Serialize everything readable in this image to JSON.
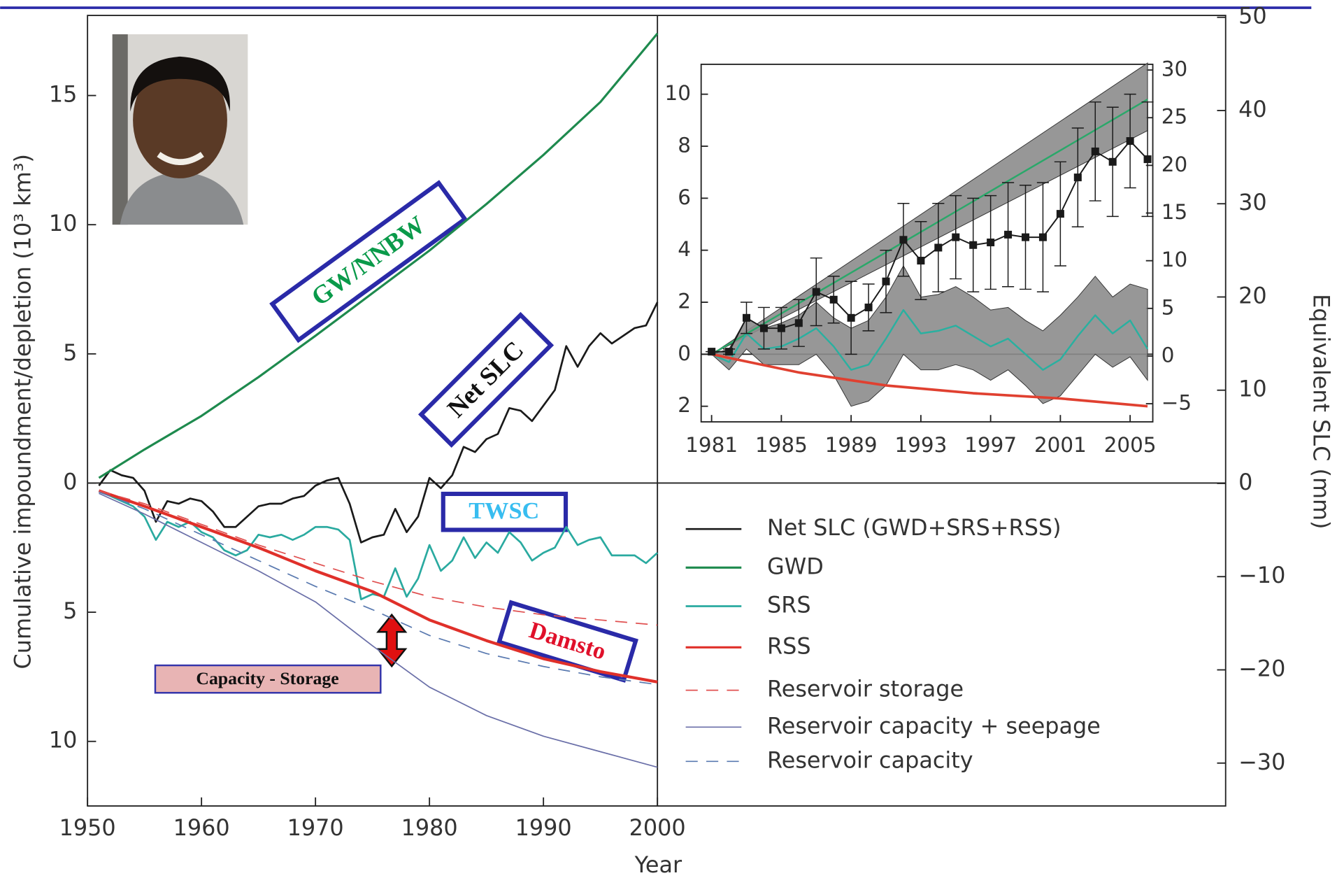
{
  "chart_data": [
    {
      "type": "line",
      "xlabel": "Year",
      "ylabel": "Cumulative impoundment/depletion (10³ km³)",
      "y2label": "Equivalent SLC (mm)",
      "xlim": [
        1950,
        2000
      ],
      "xticks": [
        1950,
        1960,
        1970,
        1980,
        1990,
        2000
      ],
      "ylim": [
        -12.5,
        18.1
      ],
      "yticks": [
        15,
        10,
        5,
        0,
        {
          "value": -5,
          "label": "5"
        },
        {
          "value": -10,
          "label": "10"
        }
      ],
      "y2lim": [
        -34.6,
        50.2
      ],
      "y2ticks": [
        50,
        40,
        30,
        20,
        10,
        0,
        {
          "value": -10,
          "label": "−10"
        },
        {
          "value": -20,
          "label": "−20"
        },
        {
          "value": -30,
          "label": "−30"
        }
      ],
      "series": [
        {
          "name": "Net SLC (GWD+SRS+RSS)",
          "color": "#1a1a1a",
          "linewidth": 2.2,
          "x": [
            1951,
            1952,
            1953,
            1954,
            1955,
            1956,
            1957,
            1958,
            1959,
            1960,
            1961,
            1962,
            1963,
            1964,
            1965,
            1966,
            1967,
            1968,
            1969,
            1970,
            1971,
            1972,
            1973,
            1974,
            1975,
            1976,
            1977,
            1978,
            1979,
            1980,
            1981,
            1982,
            1983,
            1984,
            1985,
            1986,
            1987,
            1988,
            1989,
            1990,
            1991,
            1992,
            1993,
            1994,
            1995,
            1996,
            1997,
            1998,
            1999,
            2000
          ],
          "values": [
            -0.1,
            0.5,
            0.3,
            0.2,
            -0.3,
            -1.5,
            -0.7,
            -0.8,
            -0.6,
            -0.7,
            -1.1,
            -1.7,
            -1.7,
            -1.3,
            -0.9,
            -0.8,
            -0.8,
            -0.6,
            -0.5,
            -0.1,
            0.1,
            0.2,
            -0.8,
            -2.3,
            -2.1,
            -2.0,
            -1.0,
            -1.9,
            -1.3,
            0.2,
            -0.2,
            0.3,
            1.4,
            1.2,
            1.7,
            1.9,
            2.9,
            2.8,
            2.4,
            3.0,
            3.6,
            5.3,
            4.5,
            5.3,
            5.8,
            5.4,
            5.7,
            6.0,
            6.1,
            7.0
          ]
        },
        {
          "name": "GWD",
          "color": "#1e8a4e",
          "linewidth": 2.6,
          "x": [
            1951,
            1955,
            1960,
            1965,
            1970,
            1975,
            1980,
            1985,
            1990,
            1995,
            2000
          ],
          "values": [
            0.2,
            1.3,
            2.6,
            4.1,
            5.7,
            7.35,
            9.0,
            10.8,
            12.7,
            14.75,
            17.4
          ]
        },
        {
          "name": "SRS",
          "color": "#2aaaa0",
          "linewidth": 2.2,
          "x": [
            1951,
            1952,
            1953,
            1954,
            1955,
            1956,
            1957,
            1958,
            1959,
            1960,
            1961,
            1962,
            1963,
            1964,
            1965,
            1966,
            1967,
            1968,
            1969,
            1970,
            1971,
            1972,
            1973,
            1974,
            1975,
            1976,
            1977,
            1978,
            1979,
            1980,
            1981,
            1982,
            1983,
            1984,
            1985,
            1986,
            1987,
            1988,
            1989,
            1990,
            1991,
            1992,
            1993,
            1994,
            1995,
            1996,
            1997,
            1998,
            1999,
            2000
          ],
          "values": [
            -0.3,
            -0.5,
            -0.7,
            -0.9,
            -1.3,
            -2.2,
            -1.5,
            -1.7,
            -1.5,
            -1.9,
            -2.1,
            -2.6,
            -2.8,
            -2.6,
            -2.0,
            -2.1,
            -2.0,
            -2.2,
            -2.0,
            -1.7,
            -1.7,
            -1.8,
            -2.2,
            -4.5,
            -4.3,
            -4.4,
            -3.3,
            -4.4,
            -3.7,
            -2.4,
            -3.4,
            -3.0,
            -2.1,
            -2.9,
            -2.3,
            -2.7,
            -1.9,
            -2.3,
            -3.0,
            -2.7,
            -2.5,
            -1.7,
            -2.4,
            -2.2,
            -2.1,
            -2.8,
            -2.8,
            -2.8,
            -3.1,
            -2.7
          ]
        },
        {
          "name": "RSS",
          "color": "#e0302a",
          "linewidth": 3.4,
          "x": [
            1951,
            1955,
            1960,
            1965,
            1970,
            1975,
            1980,
            1985,
            1990,
            1995,
            2000
          ],
          "values": [
            -0.3,
            -0.9,
            -1.7,
            -2.5,
            -3.4,
            -4.2,
            -5.3,
            -6.1,
            -6.8,
            -7.3,
            -7.7
          ]
        },
        {
          "name": "Reservoir storage",
          "color": "#e05050",
          "linewidth": 1.4,
          "dash": "dashed",
          "x": [
            1951,
            1955,
            1960,
            1965,
            1970,
            1975,
            1980,
            1985,
            1990,
            1995,
            2000
          ],
          "values": [
            -0.3,
            -0.8,
            -1.6,
            -2.4,
            -3.1,
            -3.8,
            -4.4,
            -4.8,
            -5.1,
            -5.3,
            -5.5
          ]
        },
        {
          "name": "Reservoir capacity + seepage",
          "color": "#6a6fa8",
          "linewidth": 1.4,
          "x": [
            1951,
            1955,
            1960,
            1965,
            1970,
            1975,
            1980,
            1985,
            1990,
            1995,
            2000
          ],
          "values": [
            -0.4,
            -1.2,
            -2.3,
            -3.4,
            -4.6,
            -6.3,
            -7.9,
            -9.0,
            -9.8,
            -10.4,
            -11.0
          ]
        },
        {
          "name": "Reservoir capacity",
          "color": "#5a7ab0",
          "linewidth": 1.4,
          "dash": "dashed",
          "x": [
            1951,
            1955,
            1960,
            1965,
            1970,
            1975,
            1980,
            1985,
            1990,
            1995,
            2000
          ],
          "values": [
            -0.35,
            -1.0,
            -2.0,
            -3.0,
            -4.0,
            -4.9,
            -5.9,
            -6.6,
            -7.1,
            -7.5,
            -7.8
          ]
        }
      ],
      "annotations": [
        "GW/NNBW",
        "Net SLC",
        "TWSC",
        "Damsto",
        "Capacity - Storage"
      ]
    },
    {
      "type": "line",
      "xlim": [
        1980.4,
        2006.3
      ],
      "xticks": [
        1981,
        1985,
        1989,
        1993,
        1997,
        2001,
        2005
      ],
      "ylim": [
        -2.6,
        11.15
      ],
      "yticks": [
        10,
        8,
        6,
        4,
        2,
        0,
        {
          "value": -2,
          "label": "2"
        }
      ],
      "y2lim": [
        -6.9,
        30.6
      ],
      "y2ticks": [
        30,
        25,
        20,
        15,
        10,
        5,
        0,
        {
          "value": -5,
          "label": "−5"
        }
      ],
      "x": [
        1981,
        1982,
        1983,
        1984,
        1985,
        1986,
        1987,
        1988,
        1989,
        1990,
        1991,
        1992,
        1993,
        1994,
        1995,
        1996,
        1997,
        1998,
        1999,
        2000,
        2001,
        2002,
        2003,
        2004,
        2005,
        2006
      ],
      "series": [
        {
          "color": "#2aa86a",
          "linewidth": 2,
          "band_color": "#8c8c8c",
          "x": [
            1981,
            2006
          ],
          "values": [
            0,
            9.8
          ],
          "band_lower": [
            0,
            8.6
          ],
          "band_upper": [
            0,
            11.2
          ]
        },
        {
          "color": "#2ab0a0",
          "linewidth": 2,
          "band_color": "#8c8c8c",
          "values": [
            0,
            -0.3,
            0.8,
            0.2,
            0.3,
            0.6,
            1.0,
            0.3,
            -0.6,
            -0.4,
            0.6,
            1.7,
            0.8,
            0.9,
            1.1,
            0.7,
            0.3,
            0.6,
            0.0,
            -0.6,
            -0.2,
            0.7,
            1.5,
            0.8,
            1.3,
            0.2
          ],
          "band_upper": [
            0,
            0.2,
            1.4,
            1.0,
            1.2,
            1.5,
            2.0,
            1.4,
            1.0,
            1.3,
            2.2,
            3.4,
            2.2,
            2.3,
            2.6,
            2.2,
            1.7,
            1.8,
            1.3,
            0.9,
            1.5,
            2.2,
            3.0,
            2.2,
            2.7,
            2.5
          ],
          "band_lower": [
            0,
            -0.6,
            0.2,
            -0.4,
            -0.4,
            -0.4,
            0.0,
            -0.8,
            -2.0,
            -1.8,
            -1.2,
            0.0,
            -0.6,
            -0.6,
            -0.4,
            -0.6,
            -1.0,
            -0.6,
            -1.2,
            -1.9,
            -1.6,
            -0.8,
            0.0,
            -0.5,
            -0.1,
            -1.0
          ]
        },
        {
          "color": "#e04030",
          "linewidth": 3,
          "x": [
            1981,
            1986,
            1991,
            1996,
            2001,
            2006
          ],
          "values": [
            0,
            -0.7,
            -1.2,
            -1.5,
            -1.7,
            -2.0
          ]
        },
        {
          "color": "#1a1a1a",
          "linewidth": 1.6,
          "markers": true,
          "values": [
            0.1,
            0.1,
            1.4,
            1.0,
            1.0,
            1.2,
            2.4,
            2.1,
            1.4,
            1.8,
            2.8,
            4.4,
            3.6,
            4.1,
            4.5,
            4.2,
            4.3,
            4.6,
            4.5,
            4.5,
            5.4,
            6.8,
            7.8,
            7.4,
            8.2,
            7.5
          ],
          "errors": [
            0,
            0.1,
            0.6,
            0.8,
            0.8,
            0.9,
            1.3,
            0.9,
            1.4,
            0.9,
            1.2,
            1.4,
            1.5,
            1.7,
            1.6,
            1.8,
            1.8,
            2.0,
            2.0,
            2.1,
            2.0,
            1.9,
            1.9,
            2.1,
            1.8,
            2.2
          ]
        }
      ]
    }
  ]
}
